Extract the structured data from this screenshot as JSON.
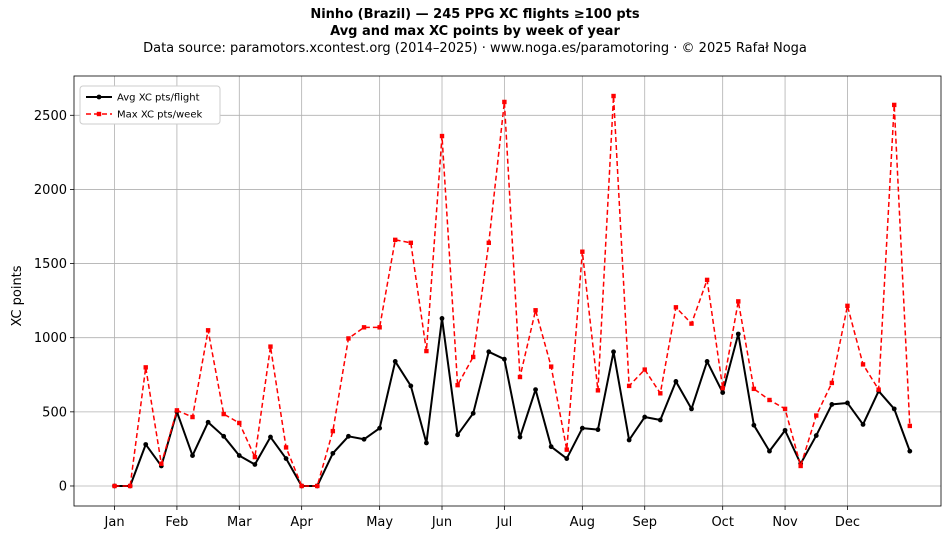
{
  "chart_data": {
    "type": "line",
    "title": "Ninho (Brazil)  —  245 PPG XC flights ≥100 pts",
    "subtitle": "Avg and max XC points by week of year",
    "source": "Data source: paramotors.xcontest.org (2014–2025)  ·  www.noga.es/paramotoring  ·  © 2025 Rafał Noga",
    "xlabel": "",
    "ylabel": "XC points",
    "ylim": [
      -135,
      2765
    ],
    "yticks": [
      0,
      500,
      1000,
      1500,
      2000,
      2500
    ],
    "xlim": [
      -2.6,
      53
    ],
    "month_ticks": [
      {
        "label": "Jan",
        "week": 0
      },
      {
        "label": "Feb",
        "week": 4
      },
      {
        "label": "Mar",
        "week": 8
      },
      {
        "label": "Apr",
        "week": 12
      },
      {
        "label": "May",
        "week": 17
      },
      {
        "label": "Jun",
        "week": 21
      },
      {
        "label": "Jul",
        "week": 25
      },
      {
        "label": "Aug",
        "week": 30
      },
      {
        "label": "Sep",
        "week": 34
      },
      {
        "label": "Oct",
        "week": 39
      },
      {
        "label": "Nov",
        "week": 43
      },
      {
        "label": "Dec",
        "week": 47
      }
    ],
    "grid": true,
    "legend_position": "top-left",
    "series": [
      {
        "name": "Avg XC pts/flight",
        "color": "#000000",
        "style": "solid",
        "marker": "circle",
        "x": [
          0,
          1,
          2,
          3,
          4,
          5,
          6,
          7,
          8,
          9,
          10,
          11,
          12,
          13,
          14,
          15,
          16,
          17,
          18,
          19,
          20,
          21,
          22,
          23,
          24,
          25,
          26,
          27,
          28,
          29,
          30,
          31,
          32,
          33,
          34,
          35,
          36,
          37,
          38,
          39,
          40,
          41,
          42,
          43,
          44,
          45,
          46,
          47,
          48,
          49,
          50,
          51
        ],
        "values": [
          0,
          0,
          280,
          135,
          500,
          205,
          430,
          335,
          205,
          145,
          330,
          185,
          0,
          0,
          220,
          335,
          315,
          390,
          840,
          675,
          290,
          1130,
          345,
          490,
          905,
          855,
          330,
          650,
          265,
          185,
          390,
          380,
          905,
          310,
          465,
          445,
          705,
          520,
          840,
          630,
          1025,
          410,
          235,
          375,
          150,
          340,
          550,
          560,
          415,
          640,
          520,
          235
        ]
      },
      {
        "name": "Max XC pts/week",
        "color": "#ff0000",
        "style": "dashed",
        "marker": "square",
        "x": [
          0,
          1,
          2,
          3,
          4,
          5,
          6,
          7,
          8,
          9,
          10,
          11,
          12,
          13,
          14,
          15,
          16,
          17,
          18,
          19,
          20,
          21,
          22,
          23,
          24,
          25,
          26,
          27,
          28,
          29,
          30,
          31,
          32,
          33,
          34,
          35,
          36,
          37,
          38,
          39,
          40,
          41,
          42,
          43,
          44,
          45,
          46,
          47,
          48,
          49,
          50,
          51
        ],
        "values": [
          0,
          0,
          800,
          150,
          510,
          465,
          1050,
          485,
          425,
          195,
          940,
          260,
          0,
          0,
          370,
          995,
          1070,
          1070,
          1660,
          1640,
          910,
          2360,
          680,
          870,
          1640,
          2590,
          735,
          1185,
          805,
          245,
          1580,
          645,
          2630,
          675,
          785,
          625,
          1205,
          1095,
          1390,
          660,
          1245,
          655,
          580,
          520,
          135,
          475,
          695,
          1215,
          820,
          650,
          2570,
          405
        ]
      }
    ]
  }
}
